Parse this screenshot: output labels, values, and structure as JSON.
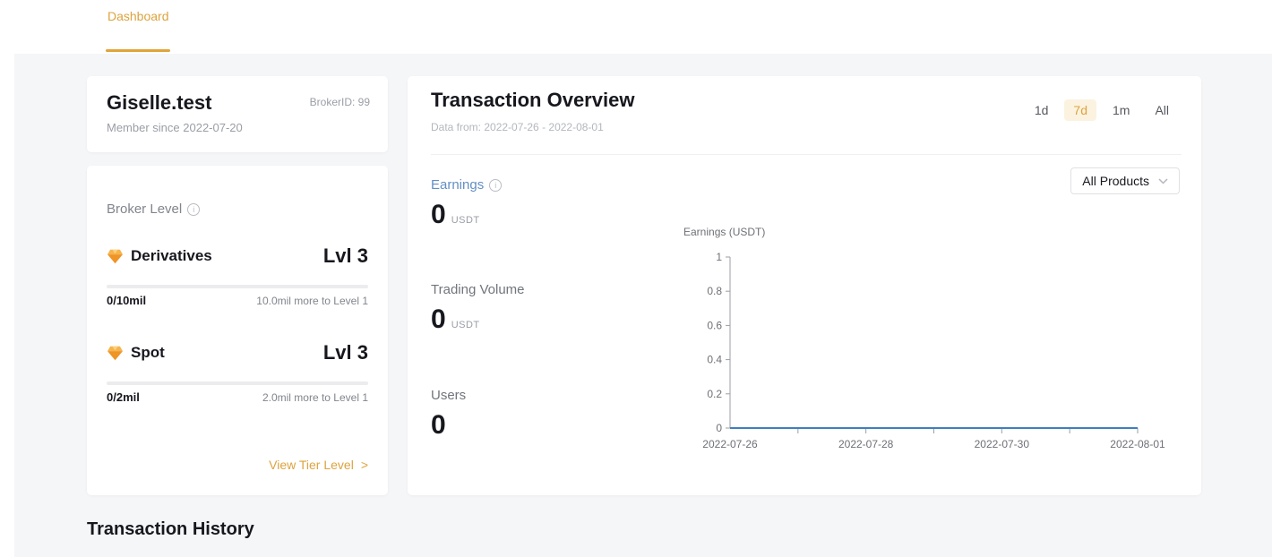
{
  "header": {
    "tab_label": "Dashboard"
  },
  "profile_card": {
    "name": "Giselle.test",
    "broker_id": "BrokerID: 99",
    "member_since": "Member since 2022-07-20"
  },
  "broker_level_card": {
    "title": "Broker Level",
    "tiers": [
      {
        "name": "Derivatives",
        "level": "Lvl 3",
        "progress": "0/10mil",
        "remaining": "10.0mil more to Level 1",
        "progress_pct": 0
      },
      {
        "name": "Spot",
        "level": "Lvl 3",
        "progress": "0/2mil",
        "remaining": "2.0mil more to Level 1",
        "progress_pct": 0
      }
    ],
    "view_tier_label": "View Tier Level",
    "view_tier_arrow": ">"
  },
  "overview_card": {
    "title": "Transaction Overview",
    "date_range": "Data from: 2022-07-26 - 2022-08-01",
    "range_options": [
      {
        "label": "1d",
        "selected": false
      },
      {
        "label": "7d",
        "selected": true
      },
      {
        "label": "1m",
        "selected": false
      },
      {
        "label": "All",
        "selected": false
      }
    ],
    "product_filter": {
      "value": "All Products"
    },
    "stats": [
      {
        "label": "Earnings",
        "value": "0",
        "unit": "USDT"
      },
      {
        "label": "Trading Volume",
        "value": "0",
        "unit": "USDT"
      },
      {
        "label": "Users",
        "value": "0",
        "unit": ""
      }
    ]
  },
  "chart_data": {
    "type": "line",
    "title": "Earnings (USDT)",
    "x": [
      "2022-07-26",
      "2022-07-27",
      "2022-07-28",
      "2022-07-29",
      "2022-07-30",
      "2022-07-31",
      "2022-08-01"
    ],
    "series": [
      {
        "name": "Earnings",
        "values": [
          0,
          0,
          0,
          0,
          0,
          0,
          0
        ]
      }
    ],
    "ylim": [
      0,
      1
    ],
    "yticks": [
      0,
      0.2,
      0.4,
      0.6,
      0.8,
      1
    ],
    "xtick_label_indices": [
      0,
      2,
      4,
      6
    ],
    "line_color": "#3d7fc0",
    "axis_color": "#9b9ea3",
    "grid": false,
    "legend": "none"
  },
  "history_section": {
    "title": "Transaction History"
  },
  "colors": {
    "accent_orange": "#e0a43a",
    "selected_range_bg": "#fbf3e0",
    "earnings_blue": "#628fc4",
    "line_blue": "#3d7fc0",
    "panel_bg": "#f5f6f8"
  }
}
